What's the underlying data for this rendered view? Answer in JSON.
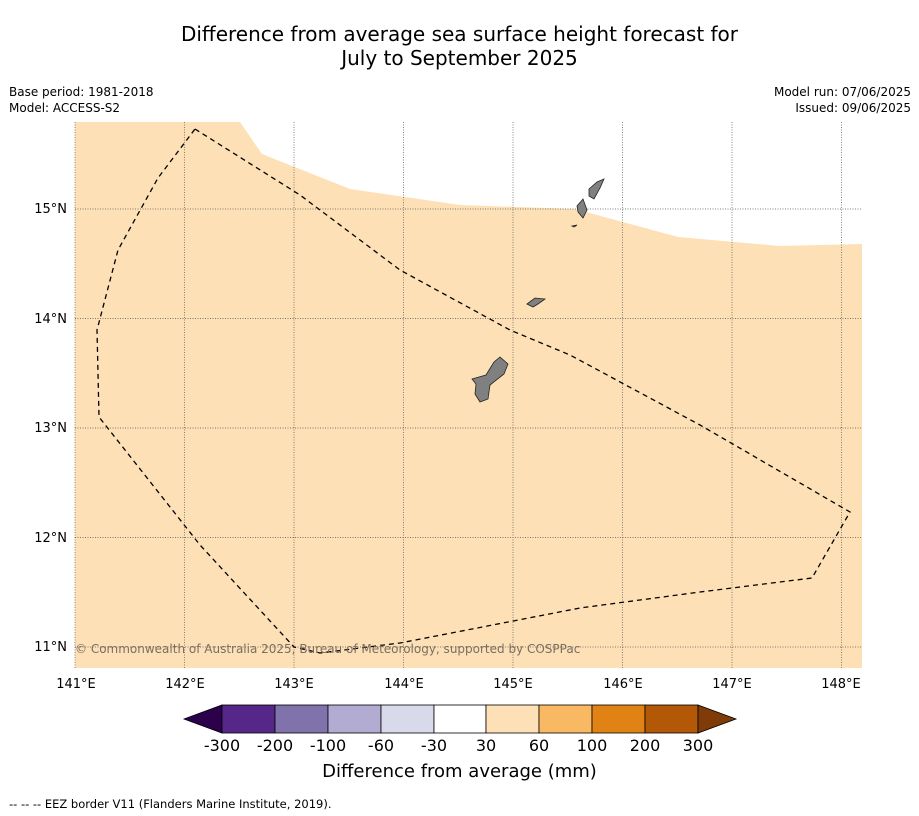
{
  "header": {
    "title_line1": "Difference from average sea surface height forecast for",
    "title_line2": "July to September 2025",
    "base_period": "Base period: 1981-2018",
    "model": "Model: ACCESS-S2",
    "model_run": "Model run: 07/06/2025",
    "issued": "Issued: 09/06/2025"
  },
  "map": {
    "lon_labels": [
      "141°E",
      "142°E",
      "143°E",
      "144°E",
      "145°E",
      "146°E",
      "147°E",
      "148°E"
    ],
    "lat_labels": [
      "15°N",
      "14°N",
      "13°N",
      "12°N",
      "11°N"
    ],
    "copyright": "© Commonwealth of Australia 2025, Bureau of Meteorology, supported by COSPPac",
    "fill_color": "#fde0b6",
    "land_color": "#808080",
    "fill_category": "30 to 60"
  },
  "colorbar": {
    "title": "Difference from average (mm)",
    "labels": [
      "-300",
      "-200",
      "-100",
      "-60",
      "-30",
      "30",
      "60",
      "100",
      "200",
      "300"
    ],
    "colors": [
      "#2d004b",
      "#542788",
      "#8073ac",
      "#b2abd2",
      "#d8daeb",
      "#ffffff",
      "#fde0b6",
      "#f9b862",
      "#e08214",
      "#b35806",
      "#7f3b08"
    ]
  },
  "footnote": "--  --  -- EEZ border V11 (Flanders Marine Institute, 2019)."
}
